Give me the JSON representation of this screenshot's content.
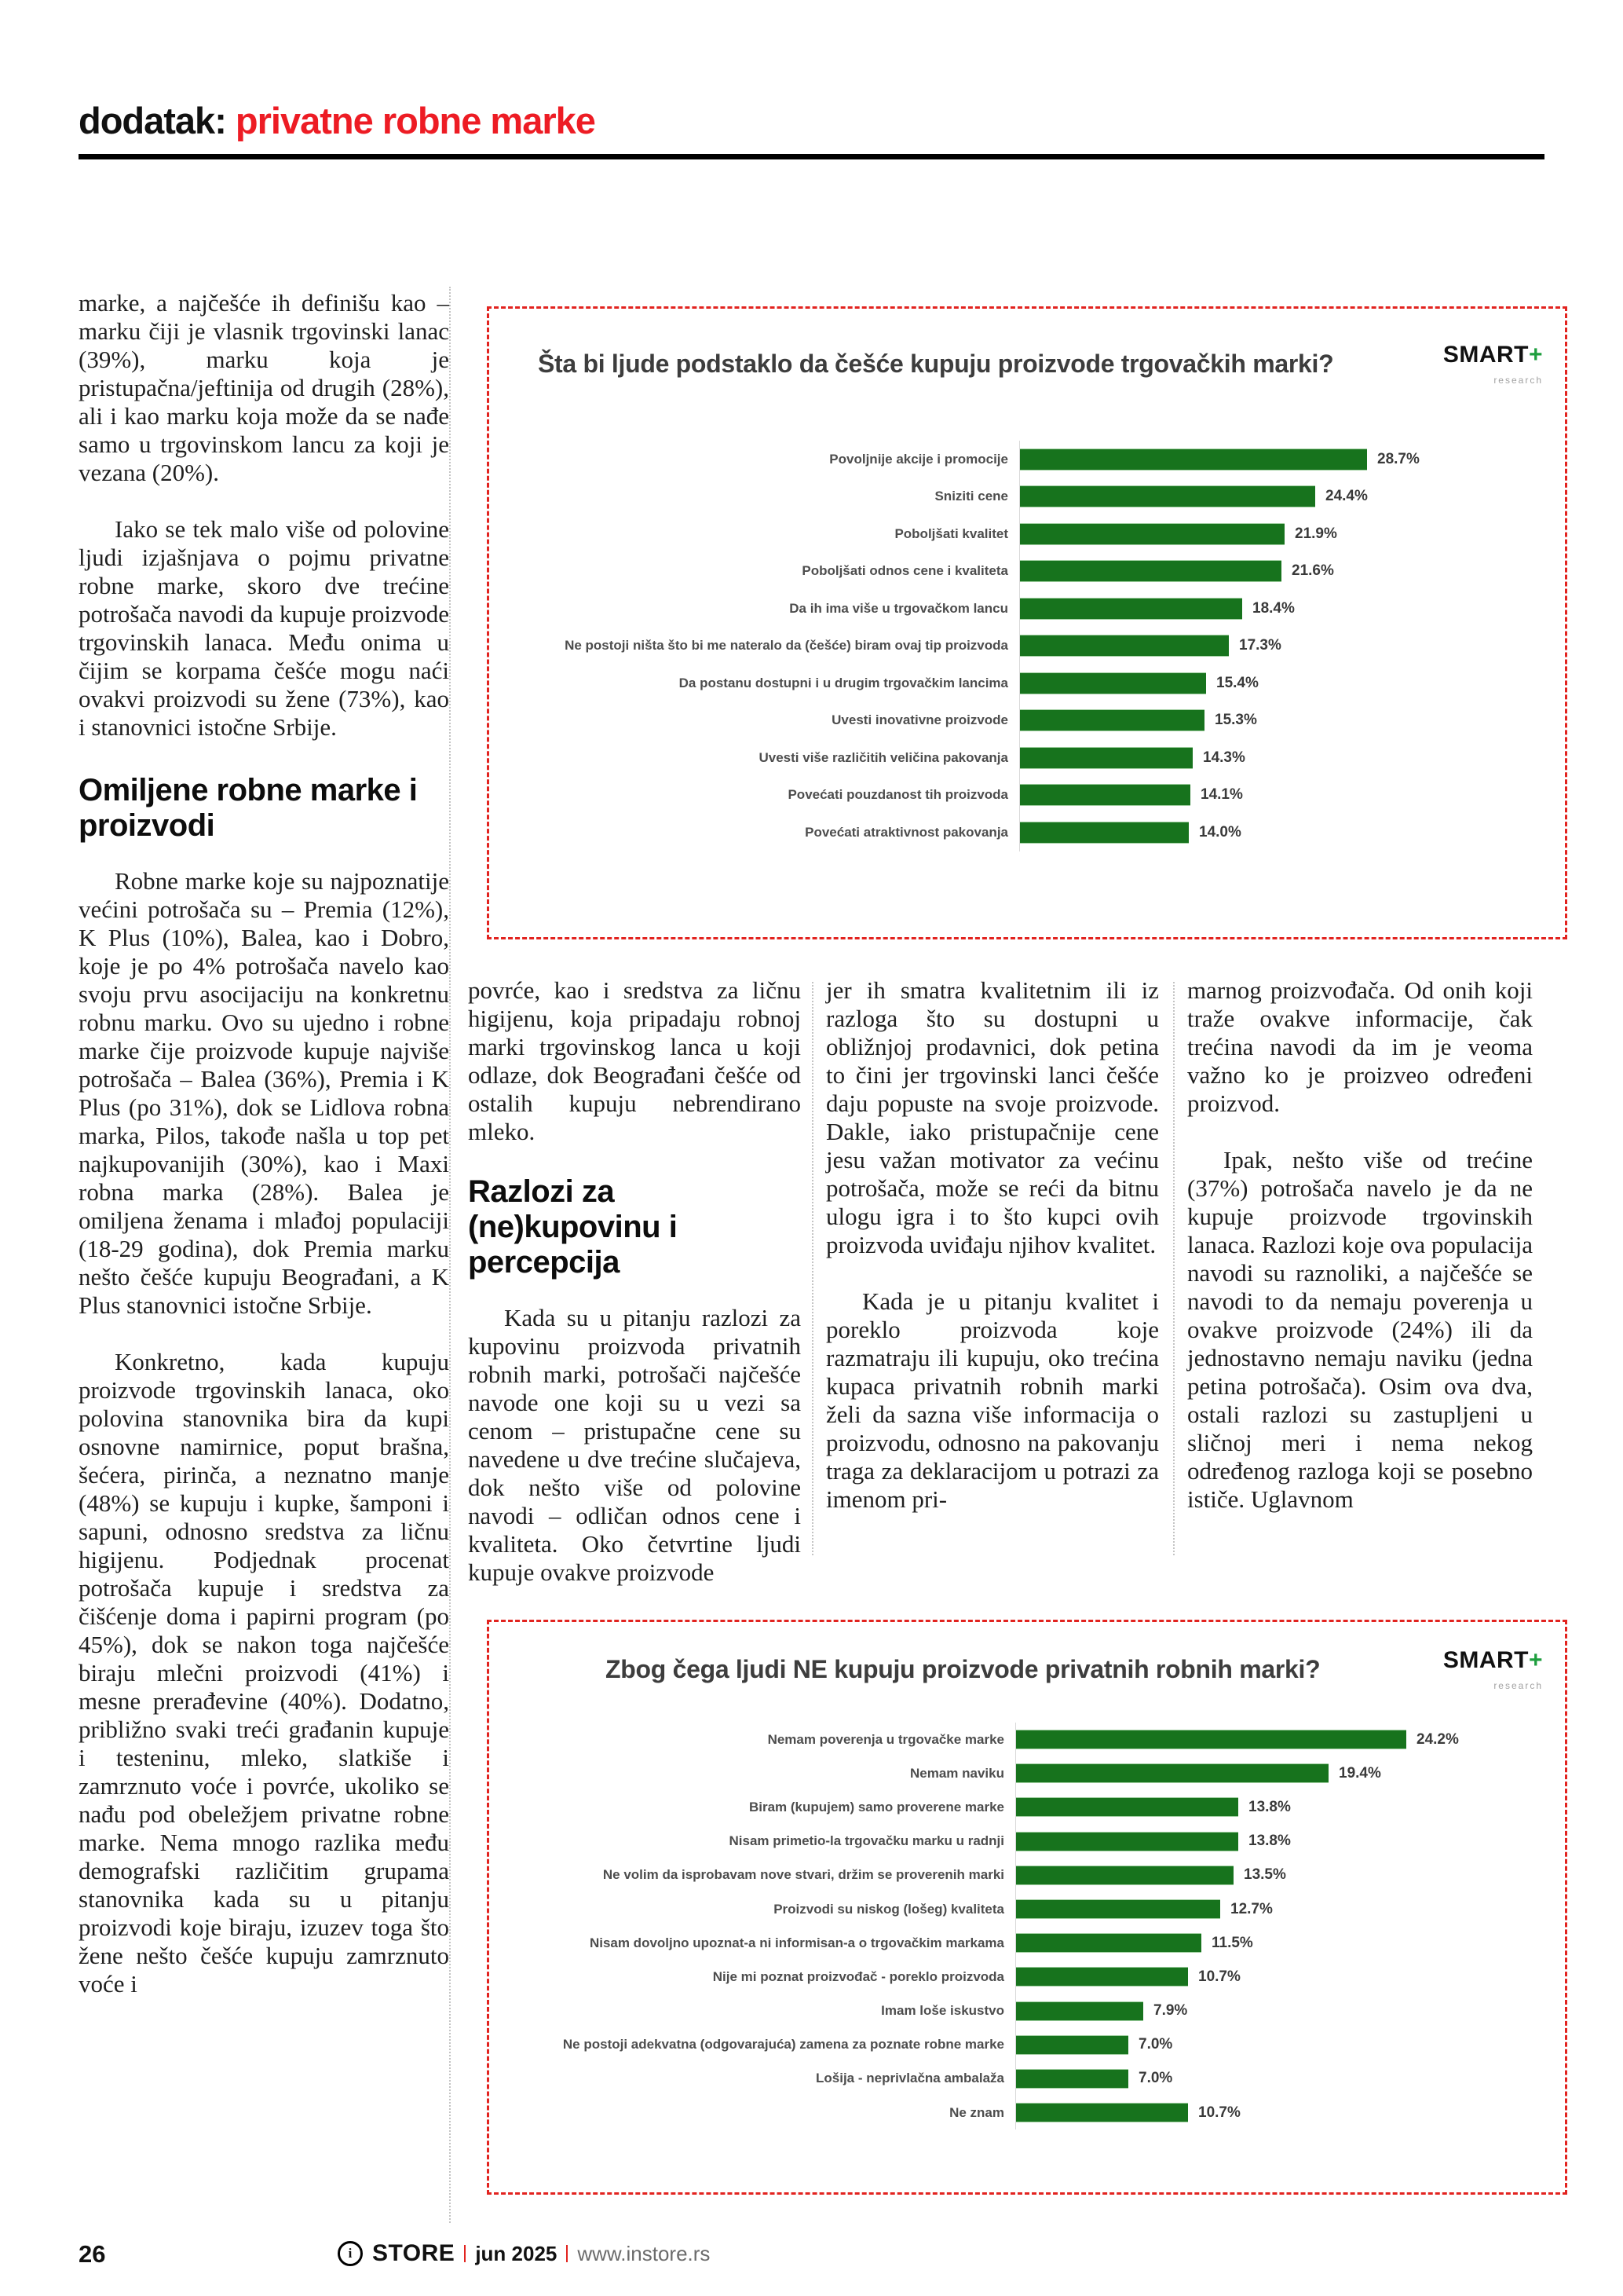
{
  "header": {
    "black": "dodatak:",
    "red": "privatne robne marke"
  },
  "columns": {
    "left": {
      "p1": "marke, a najčešće ih definišu kao – marku čiji je vlasnik trgovinski lanac (39%), marku koja je pristupačna/jeftinija od drugih (28%), ali i kao marku koja može da se nađe samo u trgovinskom lancu za koji je vezana (20%).",
      "p2": "Iako se tek malo više od polovine ljudi izjašnjava o pojmu privatne robne marke, skoro dve trećine potrošača navodi da kupuje proizvode trgovinskih lanaca. Među onima u čijim se korpama češće mogu naći ovakvi proizvodi su žene (73%), kao i stanovnici istočne Srbije.",
      "heading": "Omiljene robne marke i proizvodi",
      "p3": "Robne marke koje su najpoznatije većini potrošača su – Premia (12%), K Plus (10%), Balea, kao i Dobro, koje je po 4% potrošača navelo kao svoju prvu asocijaciju na konkretnu robnu marku. Ovo su ujedno i robne marke čije proizvode kupuje najviše potrošača – Balea (36%), Premia i K Plus (po 31%), dok se Lidlova robna marka, Pilos, takođe našla u top pet najkupovanijih (30%), kao i Maxi robna marka (28%). Balea je omiljena ženama i mlađoj populaciji (18-29 godina), dok Premia marku nešto češće kupuju Beograđani, a K Plus stanovnici istočne Srbije.",
      "p4": "Konkretno, kada kupuju proizvode trgovinskih lanaca, oko polovina stanovnika bira da kupi osnovne namirnice, poput brašna, šećera, pirinča, a neznatno manje (48%) se kupuju i kupke, šamponi i sapuni, odnosno sredstva za ličnu higijenu. Podjednak procenat potrošača kupuje i sredstva za čišćenje doma i papirni program (po 45%), dok se nakon toga najčešće biraju mlečni proizvodi (41%) i mesne prerađevine (40%). Dodatno, približno svaki treći građanin kupuje i testeninu, mleko, slatkiše i zamrznuto voće i povrće, ukoliko se nađu pod obeležjem privatne robne marke. Nema mnogo razlika među demografski različitim grupama stanovnika kada su u pitanju proizvodi koje biraju, izuzev toga što žene nešto češće kupuju zamrznuto voće i"
    },
    "col2": {
      "p1": "povrće, kao i sredstva za ličnu higijenu, koja pripadaju robnoj marki trgovinskog lanca u koji odlaze, dok Beograđani češće od ostalih kupuju nebrendirano mleko.",
      "heading": "Razlozi za (ne)kupovinu i percepcija",
      "p2": "Kada su u pitanju razlozi za kupovinu proizvoda privatnih robnih marki, potrošači najčešće navode one koji su u vezi sa cenom – pristupačne cene su navedene u dve trećine slučajeva, dok nešto više od polovine navodi – odličan odnos cene i kvaliteta. Oko četvrtine ljudi kupuje ovakve proizvode"
    },
    "col3": {
      "p1": "jer ih smatra kvalitetnim ili iz razloga što su dostupni u obližnjoj prodavnici, dok petina to čini jer trgovinski lanci češće daju popuste na svoje proizvode. Dakle, iako pristupačnije cene jesu važan motivator za većinu potrošača, može se reći da bitnu ulogu igra i to što kupci ovih proizvoda uviđaju njihov kvalitet.",
      "p2": "Kada je u pitanju kvalitet i poreklo proizvoda koje razmatraju ili kupuju, oko trećina kupaca privatnih robnih marki želi da sazna više informacija o proizvodu, odnosno na pakovanju traga za deklaracijom u potrazi za imenom pri-"
    },
    "col4": {
      "p1": "marnog proizvođača. Od onih koji traže ovakve informacije, čak trećina navodi da im je veoma važno ko je proizveo određeni proizvod.",
      "p2": "Ipak, nešto više od trećine (37%) potrošača navelo je da ne kupuje proizvode trgovinskih lanaca. Razlozi koje ova populacija navodi su raznoliki, a najčešće se navodi to da nemaju poverenja u ovakve proizvode (24%) ili da jednostavno nemaju naviku (jedna petina potrošača). Osim ova dva, ostali razlozi su zastupljeni u sličnoj meri i nema nekog određenog razloga koji se posebno ističe. Uglavnom"
    }
  },
  "logo": {
    "text": "SMART",
    "plus": "+",
    "sub": "research"
  },
  "chart_data": [
    {
      "type": "bar",
      "orientation": "horizontal",
      "title": "Šta bi ljude podstaklo da češće kupuju proizvode trgovačkih marki?",
      "unit": "%",
      "bar_color": "#17731d",
      "grid": false,
      "legend": "none",
      "xlim": [
        0,
        30
      ],
      "categories": [
        "Povoljnije akcije i promocije",
        "Sniziti cene",
        "Poboljšati kvalitet",
        "Poboljšati odnos cene i kvaliteta",
        "Da ih ima više u trgovačkom lancu",
        "Ne postoji ništa što bi me nateralo da (češće) biram ovaj tip proizvoda",
        "Da postanu dostupni i u drugim trgovačkim lancima",
        "Uvesti inovativne proizvode",
        "Uvesti više različitih veličina pakovanja",
        "Povećati pouzdanost tih proizvoda",
        "Povećati atraktivnost pakovanja"
      ],
      "values": [
        28.7,
        24.4,
        21.9,
        21.6,
        18.4,
        17.3,
        15.4,
        15.3,
        14.3,
        14.1,
        14.0
      ]
    },
    {
      "type": "bar",
      "orientation": "horizontal",
      "title": "Zbog čega ljudi NE kupuju proizvode privatnih robnih marki?",
      "unit": "%",
      "bar_color": "#17731d",
      "grid": false,
      "legend": "none",
      "xlim": [
        0,
        26
      ],
      "categories": [
        "Nemam poverenja u trgovačke marke",
        "Nemam naviku",
        "Biram (kupujem) samo proverene marke",
        "Nisam primetio-la trgovačku marku u radnji",
        "Ne volim da isprobavam nove stvari, držim se proverenih marki",
        "Proizvodi su niskog (lošeg) kvaliteta",
        "Nisam dovoljno upoznat-a ni informisan-a o trgovačkim markama",
        "Nije mi poznat proizvođač - poreklo proizvoda",
        "Imam loše iskustvo",
        "Ne postoji adekvatna (odgovarajuća) zamena za poznate robne marke",
        "Lošija - neprivlačna ambalaža",
        "Ne znam"
      ],
      "values": [
        24.2,
        19.4,
        13.8,
        13.8,
        13.5,
        12.7,
        11.5,
        10.7,
        7.9,
        7.0,
        7.0,
        10.7
      ]
    }
  ],
  "footer": {
    "page_number": "26",
    "brand_icon": "i",
    "brand": "STORE",
    "date": "jun 2025",
    "url": "www.instore.rs"
  },
  "colors": {
    "accent_red": "#e2231f",
    "header_red": "#ed1c24",
    "bar_green": "#17731d",
    "logo_green": "#1e9e3e"
  }
}
